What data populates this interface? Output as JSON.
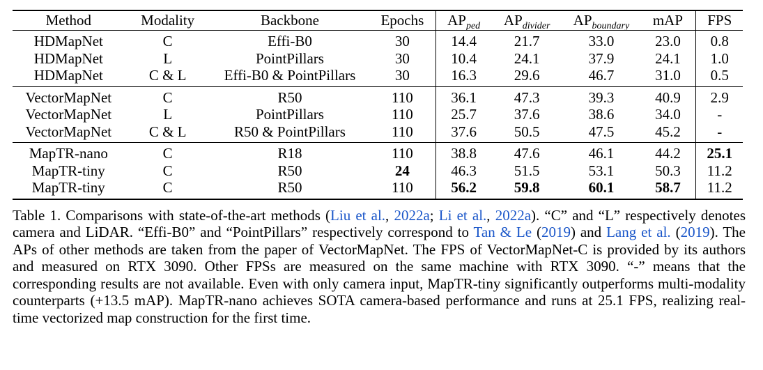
{
  "table": {
    "headers": {
      "method": "Method",
      "modality": "Modality",
      "backbone": "Backbone",
      "epochs": "Epochs",
      "ap_ped_base": "AP",
      "ap_ped_sub": "ped",
      "ap_divider_base": "AP",
      "ap_divider_sub": "divider",
      "ap_boundary_base": "AP",
      "ap_boundary_sub": "boundary",
      "map": "mAP",
      "fps": "FPS"
    },
    "groups": [
      {
        "rows": [
          {
            "method": "HDMapNet",
            "modality": "C",
            "backbone": "Effi-B0",
            "epochs": "30",
            "ap_ped": "14.4",
            "ap_divider": "21.7",
            "ap_boundary": "33.0",
            "map": "23.0",
            "fps": "0.8"
          },
          {
            "method": "HDMapNet",
            "modality": "L",
            "backbone": "PointPillars",
            "epochs": "30",
            "ap_ped": "10.4",
            "ap_divider": "24.1",
            "ap_boundary": "37.9",
            "map": "24.1",
            "fps": "1.0"
          },
          {
            "method": "HDMapNet",
            "modality": "C & L",
            "backbone": "Effi-B0 & PointPillars",
            "epochs": "30",
            "ap_ped": "16.3",
            "ap_divider": "29.6",
            "ap_boundary": "46.7",
            "map": "31.0",
            "fps": "0.5"
          }
        ]
      },
      {
        "rows": [
          {
            "method": "VectorMapNet",
            "modality": "C",
            "backbone": "R50",
            "epochs": "110",
            "ap_ped": "36.1",
            "ap_divider": "47.3",
            "ap_boundary": "39.3",
            "map": "40.9",
            "fps": "2.9"
          },
          {
            "method": "VectorMapNet",
            "modality": "L",
            "backbone": "PointPillars",
            "epochs": "110",
            "ap_ped": "25.7",
            "ap_divider": "37.6",
            "ap_boundary": "38.6",
            "map": "34.0",
            "fps": "-"
          },
          {
            "method": "VectorMapNet",
            "modality": "C & L",
            "backbone": "R50 & PointPillars",
            "epochs": "110",
            "ap_ped": "37.6",
            "ap_divider": "50.5",
            "ap_boundary": "47.5",
            "map": "45.2",
            "fps": "-"
          }
        ]
      },
      {
        "rows": [
          {
            "method": "MapTR-nano",
            "modality": "C",
            "backbone": "R18",
            "epochs": "110",
            "ap_ped": "38.8",
            "ap_divider": "47.6",
            "ap_boundary": "46.1",
            "map": "44.2",
            "fps": "25.1"
          },
          {
            "method": "MapTR-tiny",
            "modality": "C",
            "backbone": "R50",
            "epochs": "24",
            "ap_ped": "46.3",
            "ap_divider": "51.5",
            "ap_boundary": "53.1",
            "map": "50.3",
            "fps": "11.2"
          },
          {
            "method": "MapTR-tiny",
            "modality": "C",
            "backbone": "R50",
            "epochs": "110",
            "ap_ped": "56.2",
            "ap_divider": "59.8",
            "ap_boundary": "60.1",
            "map": "58.7",
            "fps": "11.2"
          }
        ]
      }
    ]
  },
  "caption": {
    "t1": "Table 1. Comparisons with state-of-the-art methods (",
    "c1": "Liu et al.",
    "t2": ", ",
    "c2": "2022a",
    "t3": "; ",
    "c3": "Li et al.",
    "t4": ", ",
    "c4": "2022a",
    "t5": "). “C” and “L” respec­tively denotes camera and LiDAR. “Effi-B0” and “PointPillars” respectively correspond to ",
    "c5": "Tan & Le",
    "t6": " (",
    "c6": "2019",
    "t7": ") and ",
    "c7": "Lang et al.",
    "t8": " (",
    "c8": "2019",
    "t9": "). The APs of other methods are taken from the paper of VectorMapNet. The FPS of VectorMapNet-C is provided by its authors and measured on RTX 3090. Other FPSs are measured on the same machine with RTX 3090. “-” means that the corresponding results are not available. Even with only camera in­put, MapTR-tiny significantly outperforms multi-modality counterparts (+13.5 mAP). MapTR-nano achieves SOTA camera-based performance and runs at 25.1 FPS, realizing real-time vectorized map construction for the first time."
  },
  "colors": {
    "text": "#000000",
    "citation": "#1a56c9",
    "background": "#ffffff"
  }
}
